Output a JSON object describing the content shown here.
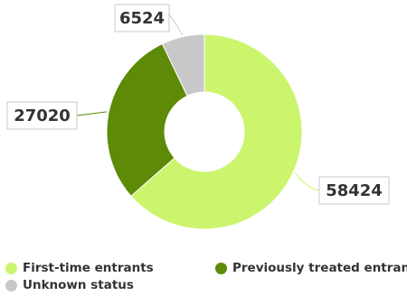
{
  "chart_data": {
    "type": "pie",
    "donut": true,
    "categories": [
      "First-time entrants",
      "Previously treated entrants",
      "Unknown status"
    ],
    "values": [
      58424,
      27020,
      6524
    ],
    "data_labels": [
      "58424",
      "27020",
      "6524"
    ],
    "colors": [
      "#ccf56e",
      "#5d8a07",
      "#c8c8c8"
    ],
    "legend_position": "bottom"
  }
}
